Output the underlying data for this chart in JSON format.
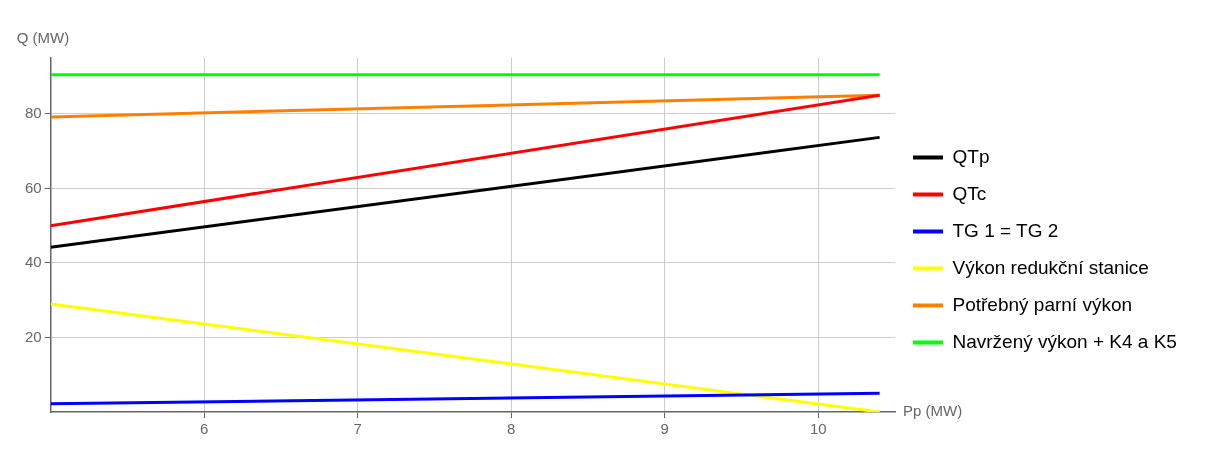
{
  "chart_data": {
    "type": "line",
    "xlabel": "Pp (MW)",
    "ylabel": "Q (MW)",
    "xlim": [
      5,
      10.5
    ],
    "ylim": [
      0,
      95
    ],
    "xticks": [
      6,
      7,
      8,
      9,
      10
    ],
    "yticks": [
      20,
      40,
      60,
      80
    ],
    "grid": true,
    "legend": "right",
    "marker": "none",
    "line_style": "solid",
    "x": [
      5,
      10.4
    ],
    "series": [
      {
        "name": "QTp",
        "color": "#000000",
        "values": [
          44.2,
          73.7
        ]
      },
      {
        "name": "QTc",
        "color": "#ff0000",
        "values": [
          50,
          85
        ]
      },
      {
        "name": "TG 1 = TG 2",
        "color": "#0000ff",
        "values": [
          2.2,
          5
        ]
      },
      {
        "name": "Výkon redukční stanice",
        "color": "#ffff00",
        "values": [
          29,
          0
        ]
      },
      {
        "name": "Potřebný parní výkon",
        "color": "#ff8000",
        "values": [
          79.2,
          85
        ]
      },
      {
        "name": "Navržený výkon + K4 a K5",
        "color": "#00ff00",
        "values": [
          90.5,
          90.5
        ]
      }
    ]
  }
}
